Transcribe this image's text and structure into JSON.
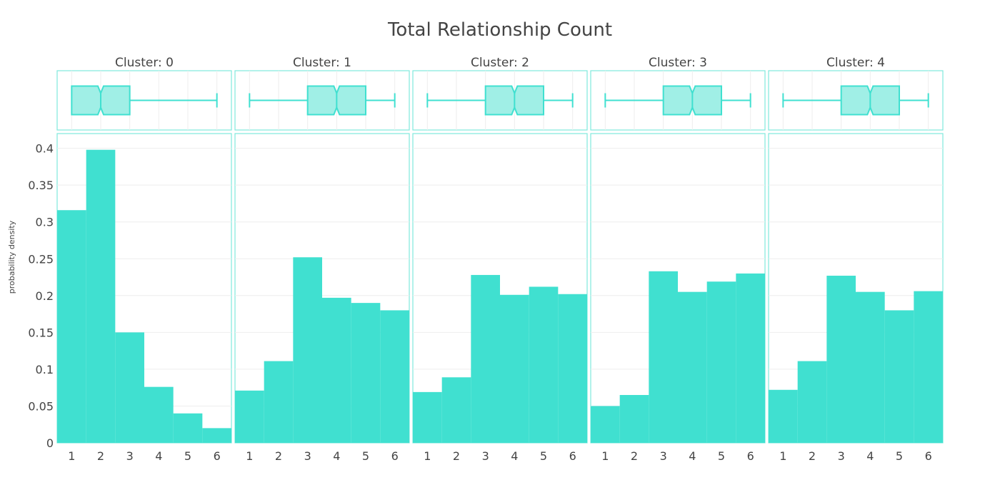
{
  "chart_data": {
    "type": "bar",
    "title": "Total Relationship Count",
    "ylabel": "probability density",
    "xlabel": "",
    "ylim": [
      0,
      0.42
    ],
    "xlim": [
      0.5,
      6.5
    ],
    "y_ticks": [
      0,
      0.05,
      0.1,
      0.15,
      0.2,
      0.25,
      0.3,
      0.35,
      0.4
    ],
    "y_tick_labels": [
      "0",
      "0.05",
      "0.1",
      "0.15",
      "0.2",
      "0.25",
      "0.3",
      "0.35",
      "0.4"
    ],
    "categories": [
      "1",
      "2",
      "3",
      "4",
      "5",
      "6"
    ],
    "grid": true,
    "color": "#40E0D0",
    "box_fill": "#A0EFE6",
    "panel_border": "#7FE8DC",
    "panels": [
      {
        "title": "Cluster: 0",
        "values": [
          0.316,
          0.398,
          0.15,
          0.076,
          0.04,
          0.02
        ],
        "box": {
          "min": 1,
          "q1": 1,
          "median": 2,
          "q3": 3,
          "max": 6
        }
      },
      {
        "title": "Cluster: 1",
        "values": [
          0.071,
          0.111,
          0.252,
          0.197,
          0.19,
          0.18
        ],
        "box": {
          "min": 1,
          "q1": 3,
          "median": 4,
          "q3": 5,
          "max": 6
        }
      },
      {
        "title": "Cluster: 2",
        "values": [
          0.069,
          0.089,
          0.228,
          0.201,
          0.212,
          0.202
        ],
        "box": {
          "min": 1,
          "q1": 3,
          "median": 4,
          "q3": 5,
          "max": 6
        }
      },
      {
        "title": "Cluster: 3",
        "values": [
          0.05,
          0.065,
          0.233,
          0.205,
          0.219,
          0.23
        ],
        "box": {
          "min": 1,
          "q1": 3,
          "median": 4,
          "q3": 5,
          "max": 6
        }
      },
      {
        "title": "Cluster: 4",
        "values": [
          0.072,
          0.111,
          0.227,
          0.205,
          0.18,
          0.206
        ],
        "box": {
          "min": 1,
          "q1": 3,
          "median": 4,
          "q3": 5,
          "max": 6
        }
      }
    ]
  }
}
